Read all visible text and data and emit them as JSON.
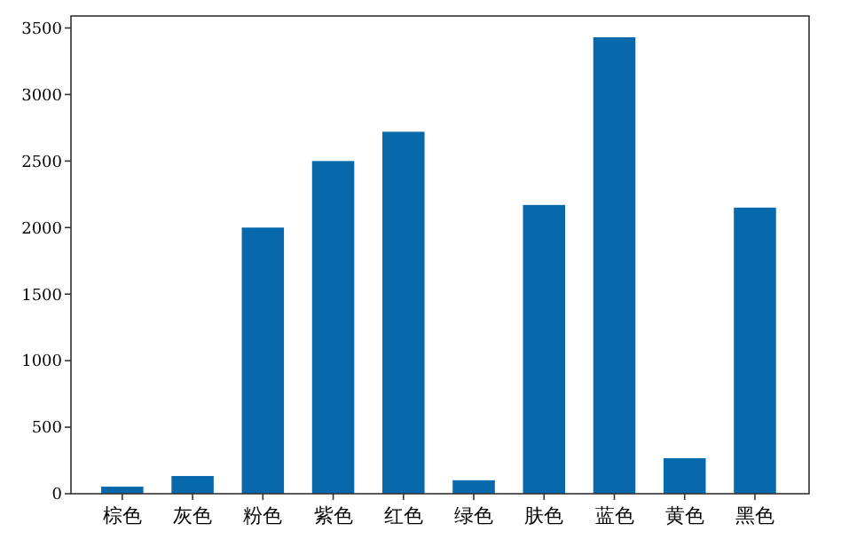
{
  "chart_data": {
    "type": "bar",
    "categories": [
      "棕色",
      "灰色",
      "粉色",
      "紫色",
      "红色",
      "绿色",
      "肤色",
      "蓝色",
      "黄色",
      "黑色"
    ],
    "values": [
      53,
      133,
      2000,
      2500,
      2720,
      101,
      2170,
      3430,
      267,
      2150
    ],
    "color": "#0868ac",
    "ylim": [
      0,
      3590
    ],
    "yticks": [
      0,
      500,
      1000,
      1500,
      2000,
      2500,
      3000,
      3500
    ],
    "grid": false
  }
}
